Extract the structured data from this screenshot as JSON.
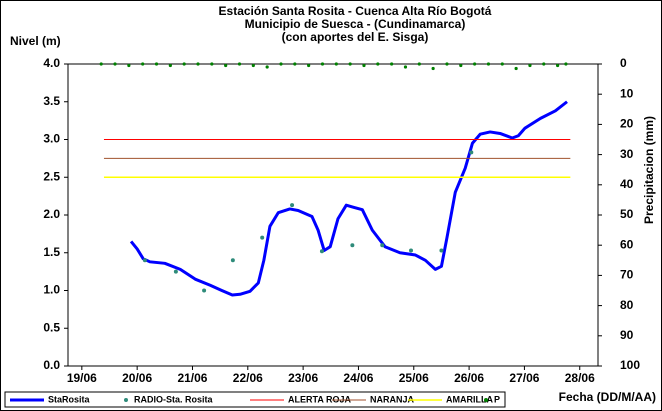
{
  "chart_data": {
    "type": "line",
    "title": [
      "Estación Santa Rosita - Cuenca Alta Río Bogotá",
      "Municipio de Suesca - (Cundinamarca)",
      "(con aportes del  E. Sisga)"
    ],
    "y_label": "Nivel (m)",
    "y2_label": "Precipitacion (mm)",
    "x_label": "Fecha (DD/M/AA)",
    "xlim": [
      18.75,
      28.33
    ],
    "ylim": [
      0,
      4
    ],
    "y2lim": [
      100,
      0
    ],
    "xticks": [
      {
        "value": 19,
        "label": "19/06"
      },
      {
        "value": 20,
        "label": "20/06"
      },
      {
        "value": 21,
        "label": "21/06"
      },
      {
        "value": 22,
        "label": "22/06"
      },
      {
        "value": 23,
        "label": "23/06"
      },
      {
        "value": 24,
        "label": "24/06"
      },
      {
        "value": 25,
        "label": "25/06"
      },
      {
        "value": 26,
        "label": "26/06"
      },
      {
        "value": 27,
        "label": "27/06"
      },
      {
        "value": 28,
        "label": "28/06"
      }
    ],
    "yticks": [
      {
        "value": 0,
        "label": "0.0"
      },
      {
        "value": 0.5,
        "label": "0.5"
      },
      {
        "value": 1,
        "label": "1.0"
      },
      {
        "value": 1.5,
        "label": "1.5"
      },
      {
        "value": 2,
        "label": "2.0"
      },
      {
        "value": 2.5,
        "label": "2.5"
      },
      {
        "value": 3,
        "label": "3.0"
      },
      {
        "value": 3.5,
        "label": "3.5"
      },
      {
        "value": 4,
        "label": "4.0"
      }
    ],
    "y2ticks": [
      0,
      10,
      20,
      30,
      40,
      50,
      60,
      70,
      80,
      90,
      100
    ],
    "series": [
      {
        "name": "StaRosita",
        "color": "#0000ff",
        "style": "line",
        "width": 3,
        "x": [
          19.89,
          20.0,
          20.11,
          20.23,
          20.5,
          20.78,
          21.05,
          21.32,
          21.53,
          21.72,
          21.86,
          22.04,
          22.19,
          22.29,
          22.4,
          22.55,
          22.76,
          22.91,
          23.16,
          23.27,
          23.38,
          23.49,
          23.63,
          23.78,
          23.92,
          24.07,
          24.25,
          24.48,
          24.75,
          25.03,
          25.21,
          25.39,
          25.5,
          25.6,
          25.75,
          25.93,
          26.06,
          26.2,
          26.38,
          26.56,
          26.78,
          26.89,
          27.01,
          27.29,
          27.56,
          27.77
        ],
        "values": [
          1.65,
          1.55,
          1.42,
          1.38,
          1.36,
          1.28,
          1.15,
          1.07,
          1.0,
          0.94,
          0.95,
          0.99,
          1.1,
          1.4,
          1.85,
          2.03,
          2.08,
          2.06,
          1.98,
          1.8,
          1.53,
          1.58,
          1.95,
          2.13,
          2.1,
          2.07,
          1.8,
          1.58,
          1.5,
          1.47,
          1.4,
          1.28,
          1.32,
          1.7,
          2.3,
          2.62,
          2.95,
          3.07,
          3.1,
          3.08,
          3.02,
          3.05,
          3.15,
          3.28,
          3.38,
          3.5
        ]
      },
      {
        "name": "RADIO-Sta. Rosita",
        "color": "#2e8b7a",
        "style": "markers",
        "size": 2,
        "x": [
          20.14,
          20.7,
          21.21,
          21.73,
          22.26,
          22.8,
          23.34,
          23.89,
          24.43,
          24.95,
          25.5,
          26.04
        ],
        "values": [
          1.4,
          1.25,
          1.0,
          1.4,
          1.7,
          2.13,
          1.52,
          1.6,
          1.6,
          1.53,
          1.53,
          2.83
        ]
      },
      {
        "name": "ALERTA ROJA",
        "color": "#ff0000",
        "style": "line",
        "width": 1,
        "x": [
          19.4,
          27.83
        ],
        "values": [
          3,
          3
        ]
      },
      {
        "name": "NARANJA",
        "color": "#a0522d",
        "style": "line",
        "width": 1,
        "x": [
          19.4,
          27.83
        ],
        "values": [
          2.75,
          2.75
        ]
      },
      {
        "name": "AMARILLA",
        "color": "#ffff00",
        "style": "line",
        "width": 1.5,
        "x": [
          19.4,
          27.83
        ],
        "values": [
          2.5,
          2.5
        ]
      },
      {
        "name": "P",
        "color": "#008000",
        "style": "markers",
        "size": 1.6,
        "axis": "y2",
        "x": [
          19.35,
          19.6,
          19.85,
          20.1,
          20.35,
          20.6,
          20.85,
          21.1,
          21.35,
          21.6,
          21.85,
          22.1,
          22.35,
          22.6,
          22.85,
          23.1,
          23.35,
          23.6,
          23.85,
          24.1,
          24.35,
          24.6,
          24.85,
          25.1,
          25.35,
          25.6,
          25.85,
          26.1,
          26.35,
          26.6,
          26.85,
          27.1,
          27.35,
          27.6,
          27.75
        ],
        "values": [
          0,
          0,
          0.5,
          0,
          0,
          0.5,
          0,
          0,
          0,
          0.5,
          0,
          0.5,
          1,
          0,
          0,
          0.5,
          0,
          0,
          0,
          0.5,
          0,
          0,
          1,
          0,
          1.5,
          0,
          0.5,
          0,
          0,
          0,
          1.5,
          0.5,
          0,
          0.5,
          0
        ]
      }
    ]
  }
}
